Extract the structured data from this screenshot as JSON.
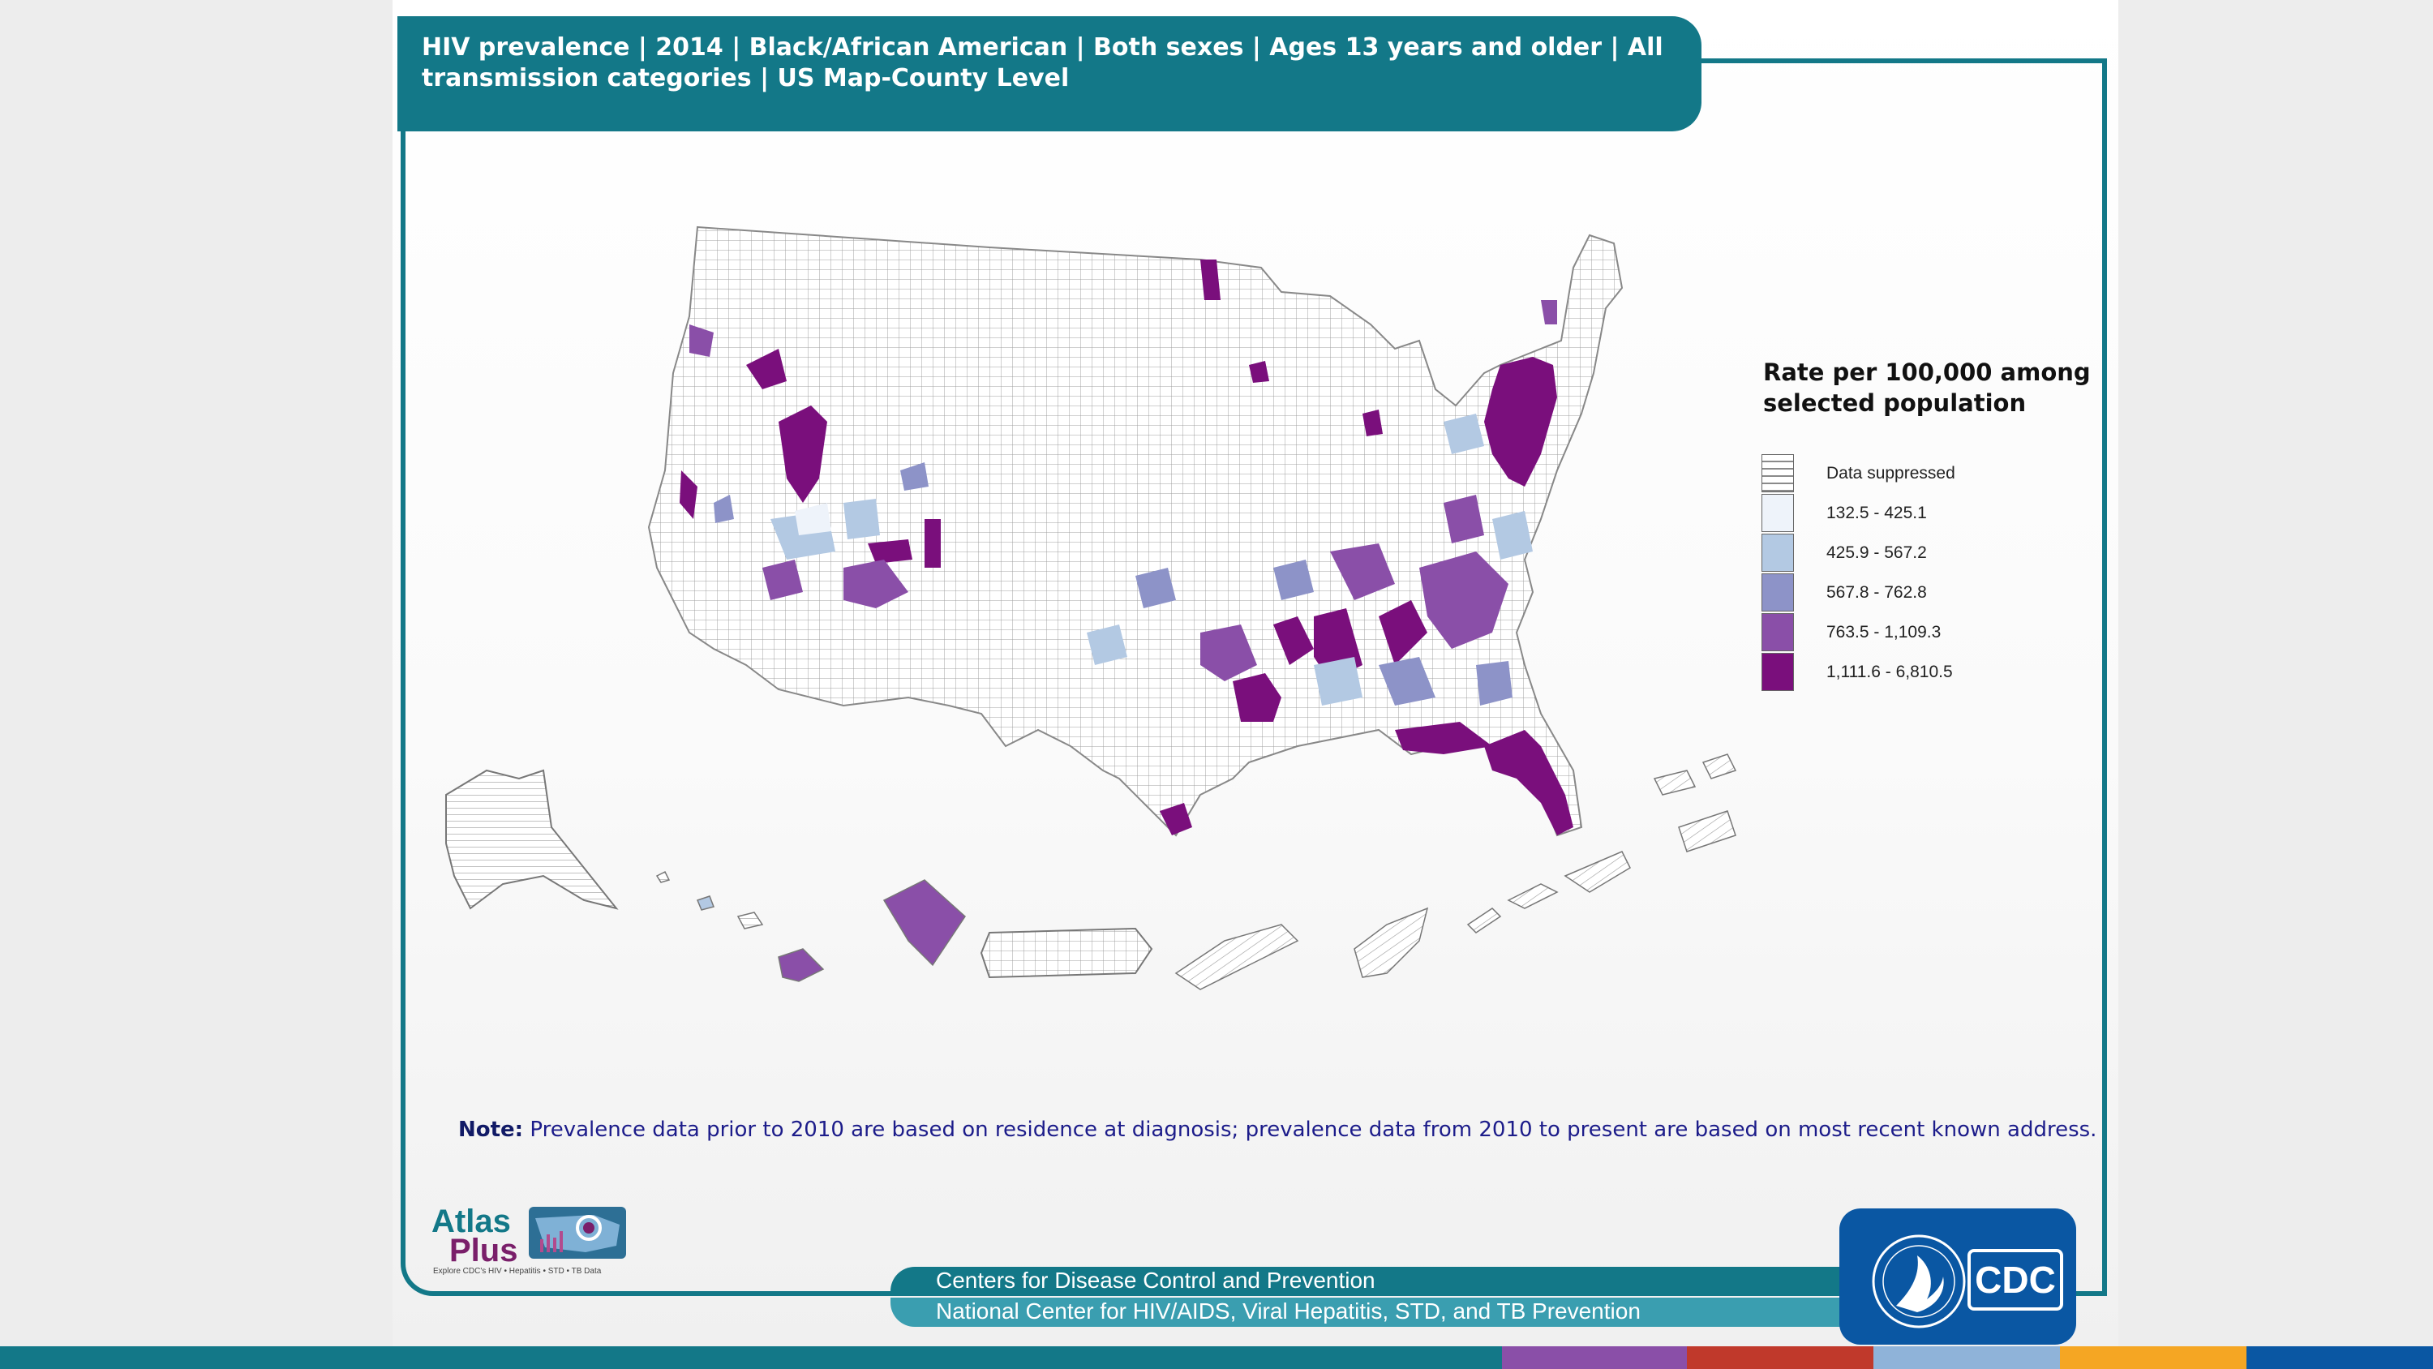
{
  "header": {
    "title": "HIV prevalence | 2014 | Black/African American | Both sexes | Ages 13 years and older | All transmission categories | US Map-County Level"
  },
  "legend": {
    "title": "Rate per 100,000 among selected population",
    "items": [
      {
        "label": "Data suppressed",
        "color": "#ffffff",
        "pattern": "hatched"
      },
      {
        "label": "132.5 - 425.1",
        "color": "#eef3fa"
      },
      {
        "label": "425.9 - 567.2",
        "color": "#b3c9e3"
      },
      {
        "label": "567.8 - 762.8",
        "color": "#8d93c8"
      },
      {
        "label": "763.5 - 1,109.3",
        "color": "#8a4fa8"
      },
      {
        "label": "1,111.6 - 6,810.5",
        "color": "#7a0f7c"
      }
    ]
  },
  "note": {
    "label": "Note:",
    "text": "Prevalence data prior to 2010 are based on residence at diagnosis; prevalence data from 2010 to present are based  on most recent known address."
  },
  "atlas_logo": {
    "word1": "Atlas",
    "word2": "Plus",
    "tagline": "Explore CDC's HIV • Hepatitis • STD • TB Data"
  },
  "footer": {
    "line1": "Centers for Disease Control and Prevention",
    "line2": "National Center for HIV/AIDS, Viral Hepatitis, STD, and TB Prevention"
  },
  "cdc_logo": {
    "text": "CDC"
  },
  "colors": {
    "brand_teal": "#137888",
    "cdc_blue": "#0a57a3",
    "suppressed": "#ffffff",
    "county_lines": "#9a9a9a"
  },
  "bottom_bar_colors": [
    "#137888",
    "#137888",
    "#8a4fa8",
    "#c0392b",
    "#8fb3d9",
    "#f5a623",
    "#0a57a3"
  ]
}
